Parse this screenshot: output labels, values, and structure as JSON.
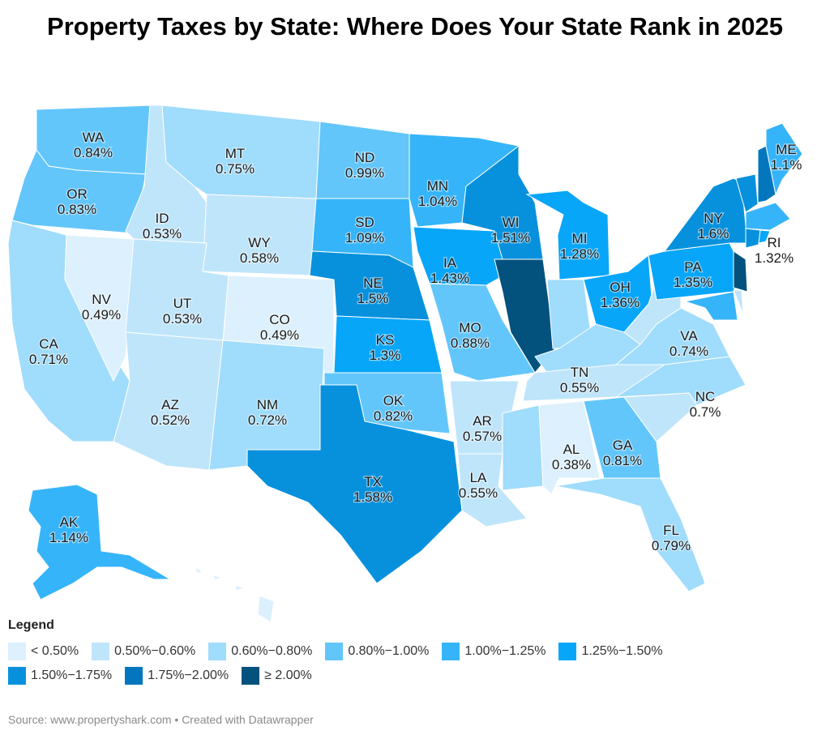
{
  "title": "Property Taxes by State: Where Does Your State Rank in 2025",
  "legend": {
    "title": "Legend",
    "bins": [
      {
        "label": "< 0.50%",
        "min": 0,
        "max": 0.5,
        "color": "#dcf0fd"
      },
      {
        "label": "0.50%−0.60%",
        "min": 0.5,
        "max": 0.6,
        "color": "#bfe5fb"
      },
      {
        "label": "0.60%−0.80%",
        "min": 0.6,
        "max": 0.8,
        "color": "#a0dcfb"
      },
      {
        "label": "0.80%−1.00%",
        "min": 0.8,
        "max": 1.0,
        "color": "#63c6fa"
      },
      {
        "label": "1.00%−1.25%",
        "min": 1.0,
        "max": 1.25,
        "color": "#36b4f9"
      },
      {
        "label": "1.25%−1.50%",
        "min": 1.25,
        "max": 1.5,
        "color": "#08a6f9"
      },
      {
        "label": "1.50%−1.75%",
        "min": 1.5,
        "max": 1.75,
        "color": "#0791dd"
      },
      {
        "label": "1.75%−2.00%",
        "min": 1.75,
        "max": 2.0,
        "color": "#0277bd"
      },
      {
        "label": "≥ 2.00%",
        "min": 2.0,
        "max": 99,
        "color": "#03517d"
      }
    ]
  },
  "states": [
    {
      "code": "WA",
      "value": 0.84,
      "label": "0.84%"
    },
    {
      "code": "OR",
      "value": 0.83,
      "label": "0.83%"
    },
    {
      "code": "CA",
      "value": 0.71,
      "label": "0.71%"
    },
    {
      "code": "NV",
      "value": 0.49,
      "label": "0.49%"
    },
    {
      "code": "ID",
      "value": 0.53,
      "label": "0.53%"
    },
    {
      "code": "MT",
      "value": 0.75,
      "label": "0.75%"
    },
    {
      "code": "WY",
      "value": 0.58,
      "label": "0.58%"
    },
    {
      "code": "UT",
      "value": 0.53,
      "label": "0.53%"
    },
    {
      "code": "CO",
      "value": 0.49,
      "label": "0.49%"
    },
    {
      "code": "AZ",
      "value": 0.52,
      "label": "0.52%"
    },
    {
      "code": "NM",
      "value": 0.72,
      "label": "0.72%"
    },
    {
      "code": "ND",
      "value": 0.99,
      "label": "0.99%"
    },
    {
      "code": "SD",
      "value": 1.09,
      "label": "1.09%"
    },
    {
      "code": "NE",
      "value": 1.5,
      "label": "1.5%"
    },
    {
      "code": "KS",
      "value": 1.3,
      "label": "1.3%"
    },
    {
      "code": "OK",
      "value": 0.82,
      "label": "0.82%"
    },
    {
      "code": "TX",
      "value": 1.58,
      "label": "1.58%"
    },
    {
      "code": "MN",
      "value": 1.04,
      "label": "1.04%"
    },
    {
      "code": "IA",
      "value": 1.43,
      "label": "1.43%"
    },
    {
      "code": "MO",
      "value": 0.88,
      "label": "0.88%"
    },
    {
      "code": "AR",
      "value": 0.57,
      "label": "0.57%"
    },
    {
      "code": "LA",
      "value": 0.55,
      "label": "0.55%"
    },
    {
      "code": "WI",
      "value": 1.51,
      "label": "1.51%"
    },
    {
      "code": "IL",
      "value": 2.1,
      "label": ""
    },
    {
      "code": "MI",
      "value": 1.28,
      "label": "1.28%"
    },
    {
      "code": "IN",
      "value": 0.7,
      "label": ""
    },
    {
      "code": "OH",
      "value": 1.36,
      "label": "1.36%"
    },
    {
      "code": "KY",
      "value": 0.7,
      "label": ""
    },
    {
      "code": "TN",
      "value": 0.55,
      "label": "0.55%"
    },
    {
      "code": "MS",
      "value": 0.7,
      "label": ""
    },
    {
      "code": "AL",
      "value": 0.38,
      "label": "0.38%"
    },
    {
      "code": "GA",
      "value": 0.81,
      "label": "0.81%"
    },
    {
      "code": "FL",
      "value": 0.79,
      "label": "0.79%"
    },
    {
      "code": "SC",
      "value": 0.55,
      "label": ""
    },
    {
      "code": "NC",
      "value": 0.7,
      "label": "0.7%"
    },
    {
      "code": "VA",
      "value": 0.74,
      "label": "0.74%"
    },
    {
      "code": "WV",
      "value": 0.55,
      "label": ""
    },
    {
      "code": "PA",
      "value": 1.35,
      "label": "1.35%"
    },
    {
      "code": "NY",
      "value": 1.6,
      "label": "1.6%"
    },
    {
      "code": "NJ",
      "value": 2.1,
      "label": ""
    },
    {
      "code": "DE",
      "value": 0.55,
      "label": ""
    },
    {
      "code": "MD",
      "value": 1.05,
      "label": ""
    },
    {
      "code": "VT",
      "value": 1.7,
      "label": ""
    },
    {
      "code": "NH",
      "value": 1.8,
      "label": ""
    },
    {
      "code": "MA",
      "value": 1.1,
      "label": ""
    },
    {
      "code": "CT",
      "value": 1.7,
      "label": ""
    },
    {
      "code": "RI",
      "value": 1.32,
      "label": "1.32%"
    },
    {
      "code": "ME",
      "value": 1.1,
      "label": "1.1%"
    },
    {
      "code": "AK",
      "value": 1.14,
      "label": "1.14%"
    },
    {
      "code": "HI",
      "value": 0.3,
      "label": ""
    }
  ],
  "source": "Source: www.propertyshark.com • Created with Datawrapper"
}
